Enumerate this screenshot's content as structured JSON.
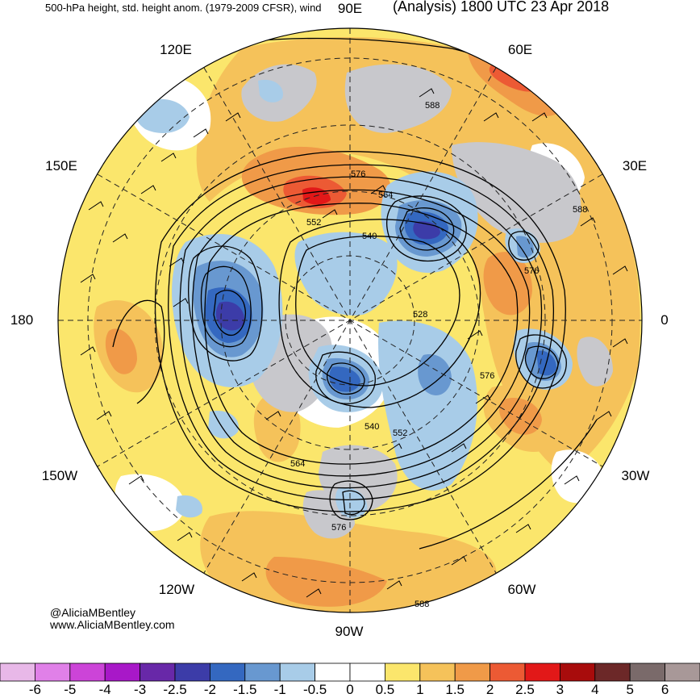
{
  "header": {
    "title_left": "500-hPa height, std. height anom. (1979-2009 CFSR), wind",
    "title_right": "(Analysis) 1800 UTC 23 Apr 2018"
  },
  "longitude_labels": {
    "lon_90e": "90E",
    "lon_120e": "120E",
    "lon_60e": "60E",
    "lon_150e": "150E",
    "lon_30e": "30E",
    "lon_180": "180",
    "lon_0": "0",
    "lon_150w": "150W",
    "lon_30w": "30W",
    "lon_120w": "120W",
    "lon_60w": "60W",
    "lon_90w": "90W"
  },
  "credits": {
    "twitter": "@AliciaMBentley",
    "website": "www.AliciaMBentley.com"
  },
  "contour_labels": [
    "588",
    "576",
    "564",
    "552",
    "540",
    "528",
    "576",
    "588",
    "576",
    "540",
    "552",
    "564",
    "576",
    "588"
  ],
  "colorbar": {
    "labels": [
      "-6",
      "-5",
      "-4",
      "-3",
      "-2.5",
      "-2",
      "-1.5",
      "-1",
      "-0.5",
      "0",
      "0.5",
      "1",
      "1.5",
      "2",
      "2.5",
      "3",
      "4",
      "5",
      "6"
    ],
    "colors": [
      "#e8b8e8",
      "#e080e8",
      "#cc44d8",
      "#a818c8",
      "#6828a8",
      "#3c3ca8",
      "#3468c0",
      "#6898d0",
      "#a8cce8",
      "#ffffff",
      "#ffffff",
      "#fbe66c",
      "#f5c25a",
      "#f09a48",
      "#ec5a34",
      "#e21818",
      "#a80c0c",
      "#6c2828",
      "#7a6a6a",
      "#a89898"
    ]
  },
  "colors": {
    "positive_anomaly": "#f5c25a",
    "strong_positive": "#ec5a34",
    "negative_anomaly": "#a8cce8",
    "strong_negative": "#3c3ca8",
    "land_gray": "#c8c8cc"
  }
}
